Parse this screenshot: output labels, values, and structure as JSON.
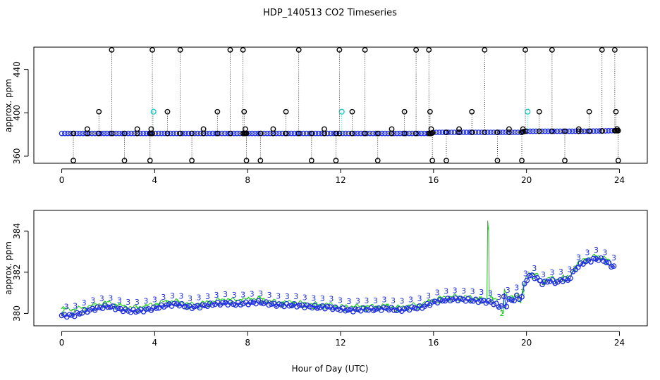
{
  "title": "HDP_140513  CO2 Timeseries",
  "chart_data": [
    {
      "type": "scatter",
      "panel": "top",
      "ylabel": "approx. ppm",
      "xlabel": "",
      "xlim": [
        -1.2,
        25.2
      ],
      "ylim": [
        353.5,
        460.5
      ],
      "xticks": [
        0,
        4,
        8,
        12,
        16,
        20,
        24
      ],
      "yticks": [
        360,
        400,
        440
      ],
      "baseline": [
        [
          0,
          381
        ],
        [
          15.9,
          381
        ],
        [
          16,
          382
        ],
        [
          19.8,
          382
        ],
        [
          19.9,
          383
        ],
        [
          22.5,
          383
        ],
        [
          23.8,
          383.5
        ]
      ],
      "spikes": [
        {
          "x": 0.5,
          "y": 356
        },
        {
          "x": 1.1,
          "y": 385
        },
        {
          "x": 1.6,
          "y": 401
        },
        {
          "x": 2.15,
          "y": 458
        },
        {
          "x": 2.7,
          "y": 356
        },
        {
          "x": 3.25,
          "y": 385
        },
        {
          "x": 3.8,
          "y": 356
        },
        {
          "x": 3.85,
          "y": 385
        },
        {
          "x": 3.9,
          "y": 458
        },
        {
          "x": 4.55,
          "y": 401
        },
        {
          "x": 5.1,
          "y": 458
        },
        {
          "x": 5.6,
          "y": 356
        },
        {
          "x": 6.1,
          "y": 385
        },
        {
          "x": 6.7,
          "y": 401
        },
        {
          "x": 7.25,
          "y": 458
        },
        {
          "x": 7.8,
          "y": 458
        },
        {
          "x": 7.85,
          "y": 401
        },
        {
          "x": 7.9,
          "y": 385
        },
        {
          "x": 7.95,
          "y": 356
        },
        {
          "x": 8.55,
          "y": 356
        },
        {
          "x": 9.1,
          "y": 385
        },
        {
          "x": 9.65,
          "y": 401
        },
        {
          "x": 10.2,
          "y": 458
        },
        {
          "x": 10.75,
          "y": 356
        },
        {
          "x": 11.3,
          "y": 385
        },
        {
          "x": 11.8,
          "y": 356
        },
        {
          "x": 11.95,
          "y": 458
        },
        {
          "x": 12.5,
          "y": 401
        },
        {
          "x": 13.05,
          "y": 458
        },
        {
          "x": 13.6,
          "y": 356
        },
        {
          "x": 14.2,
          "y": 385
        },
        {
          "x": 14.75,
          "y": 401
        },
        {
          "x": 15.25,
          "y": 458
        },
        {
          "x": 15.8,
          "y": 458
        },
        {
          "x": 15.85,
          "y": 401
        },
        {
          "x": 15.9,
          "y": 385
        },
        {
          "x": 15.95,
          "y": 356
        },
        {
          "x": 16.55,
          "y": 356
        },
        {
          "x": 17.1,
          "y": 385
        },
        {
          "x": 17.65,
          "y": 401
        },
        {
          "x": 18.2,
          "y": 458
        },
        {
          "x": 18.75,
          "y": 356
        },
        {
          "x": 19.25,
          "y": 385
        },
        {
          "x": 19.8,
          "y": 356
        },
        {
          "x": 19.85,
          "y": 385
        },
        {
          "x": 19.95,
          "y": 458
        },
        {
          "x": 20.55,
          "y": 401
        },
        {
          "x": 21.1,
          "y": 458
        },
        {
          "x": 21.65,
          "y": 356
        },
        {
          "x": 22.25,
          "y": 385
        },
        {
          "x": 22.7,
          "y": 401
        },
        {
          "x": 23.25,
          "y": 458
        },
        {
          "x": 23.8,
          "y": 458
        },
        {
          "x": 23.85,
          "y": 401
        },
        {
          "x": 23.9,
          "y": 385
        },
        {
          "x": 23.95,
          "y": 356
        }
      ],
      "cyan_points": [
        {
          "x": 3.95,
          "y": 401
        },
        {
          "x": 12.05,
          "y": 401
        },
        {
          "x": 20.05,
          "y": 401
        }
      ]
    },
    {
      "type": "line",
      "panel": "bottom",
      "ylabel": "approx. ppm",
      "xlabel": "Hour of Day (UTC)",
      "xlim": [
        -1.2,
        25.2
      ],
      "ylim": [
        379.4,
        385.0
      ],
      "xticks": [
        0,
        4,
        8,
        12,
        16,
        20,
        24
      ],
      "yticks": [
        380,
        382,
        384
      ],
      "series": [
        {
          "name": "2",
          "color": "#18c818",
          "points": [
            [
              0,
              380.25
            ],
            [
              0.5,
              380.2
            ],
            [
              1,
              380.3
            ],
            [
              1.5,
              380.45
            ],
            [
              2,
              380.55
            ],
            [
              2.5,
              380.4
            ],
            [
              3,
              380.3
            ],
            [
              3.5,
              380.35
            ],
            [
              4,
              380.45
            ],
            [
              4.5,
              380.6
            ],
            [
              5,
              380.6
            ],
            [
              5.5,
              380.45
            ],
            [
              6,
              380.5
            ],
            [
              6.5,
              380.6
            ],
            [
              7,
              380.7
            ],
            [
              7.5,
              380.65
            ],
            [
              8,
              380.7
            ],
            [
              8.5,
              380.75
            ],
            [
              9,
              380.6
            ],
            [
              9.5,
              380.55
            ],
            [
              10,
              380.55
            ],
            [
              10.5,
              380.5
            ],
            [
              11,
              380.45
            ],
            [
              11.5,
              380.45
            ],
            [
              12,
              380.35
            ],
            [
              12.5,
              380.35
            ],
            [
              13,
              380.35
            ],
            [
              13.5,
              380.35
            ],
            [
              14,
              380.4
            ],
            [
              14.5,
              380.3
            ],
            [
              15,
              380.4
            ],
            [
              15.5,
              380.45
            ],
            [
              16,
              380.7
            ],
            [
              16.5,
              380.8
            ],
            [
              17,
              380.85
            ],
            [
              17.5,
              380.8
            ],
            [
              18,
              380.75
            ],
            [
              18.25,
              380.65
            ],
            [
              18.3,
              380.7
            ],
            [
              18.33,
              384.5
            ],
            [
              18.37,
              384.1
            ],
            [
              18.4,
              380.9
            ],
            [
              18.6,
              380.7
            ],
            [
              18.8,
              380.5
            ],
            [
              19,
              380.0
            ],
            [
              19.05,
              381.2
            ],
            [
              19.2,
              380.7
            ],
            [
              19.4,
              380.8
            ],
            [
              19.6,
              381.0
            ],
            [
              19.75,
              380.5
            ],
            [
              19.9,
              381.5
            ],
            [
              20.1,
              382.0
            ],
            [
              20.4,
              381.9
            ],
            [
              20.7,
              381.6
            ],
            [
              21,
              381.75
            ],
            [
              21.3,
              381.65
            ],
            [
              21.6,
              381.8
            ],
            [
              21.8,
              381.75
            ],
            [
              22.1,
              382.3
            ],
            [
              22.4,
              382.6
            ],
            [
              22.7,
              382.7
            ],
            [
              23,
              382.8
            ],
            [
              23.3,
              382.75
            ],
            [
              23.6,
              382.5
            ],
            [
              23.8,
              382.4
            ]
          ]
        },
        {
          "name": "3",
          "color": "#1f2fe0",
          "points": [
            [
              0,
              379.9
            ],
            [
              0.5,
              379.9
            ],
            [
              1,
              380.1
            ],
            [
              1.5,
              380.25
            ],
            [
              2,
              380.35
            ],
            [
              2.5,
              380.2
            ],
            [
              3,
              380.1
            ],
            [
              3.5,
              380.15
            ],
            [
              4,
              380.25
            ],
            [
              4.5,
              380.4
            ],
            [
              5,
              380.45
            ],
            [
              5.5,
              380.3
            ],
            [
              6,
              380.35
            ],
            [
              6.5,
              380.45
            ],
            [
              7,
              380.5
            ],
            [
              7.5,
              380.45
            ],
            [
              8,
              380.5
            ],
            [
              8.5,
              380.55
            ],
            [
              9,
              380.45
            ],
            [
              9.5,
              380.4
            ],
            [
              10,
              380.4
            ],
            [
              10.5,
              380.35
            ],
            [
              11,
              380.3
            ],
            [
              11.5,
              380.3
            ],
            [
              12,
              380.2
            ],
            [
              12.5,
              380.15
            ],
            [
              13,
              380.2
            ],
            [
              13.5,
              380.2
            ],
            [
              14,
              380.25
            ],
            [
              14.5,
              380.15
            ],
            [
              15,
              380.25
            ],
            [
              15.5,
              380.3
            ],
            [
              16,
              380.55
            ],
            [
              16.5,
              380.65
            ],
            [
              17,
              380.7
            ],
            [
              17.5,
              380.65
            ],
            [
              18,
              380.6
            ],
            [
              18.5,
              380.55
            ],
            [
              18.8,
              380.35
            ],
            [
              19,
              380.4
            ],
            [
              19.05,
              381.0
            ],
            [
              19.1,
              380.2
            ],
            [
              19.2,
              380.7
            ],
            [
              19.4,
              380.6
            ],
            [
              19.6,
              380.85
            ],
            [
              19.75,
              380.6
            ],
            [
              19.9,
              381.35
            ],
            [
              20.1,
              381.85
            ],
            [
              20.4,
              381.75
            ],
            [
              20.7,
              381.45
            ],
            [
              21,
              381.6
            ],
            [
              21.3,
              381.5
            ],
            [
              21.6,
              381.65
            ],
            [
              21.8,
              381.6
            ],
            [
              22.1,
              382.15
            ],
            [
              22.4,
              382.45
            ],
            [
              22.7,
              382.55
            ],
            [
              23,
              382.65
            ],
            [
              23.3,
              382.6
            ],
            [
              23.6,
              382.35
            ],
            [
              23.8,
              382.25
            ]
          ]
        }
      ]
    }
  ]
}
